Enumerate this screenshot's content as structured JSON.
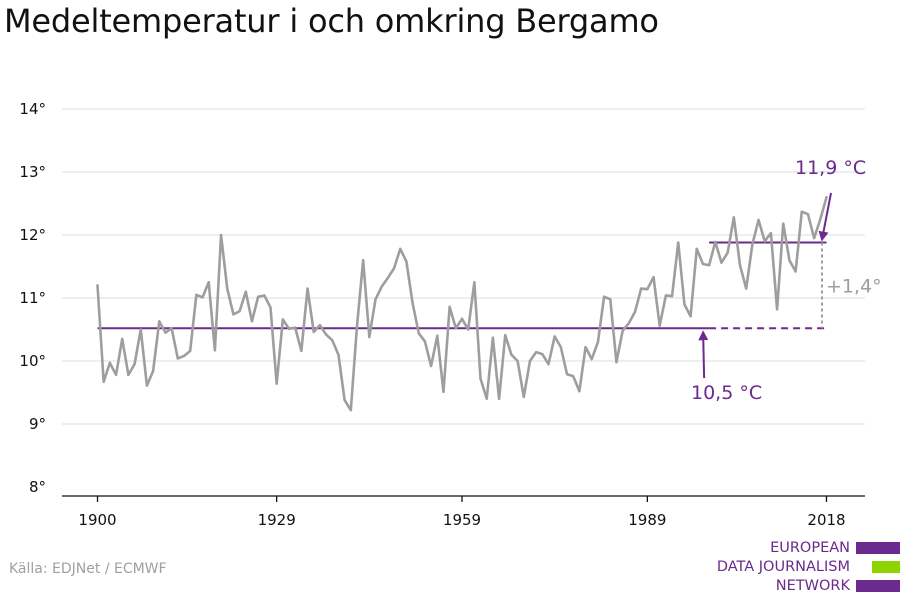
{
  "title": "Medeltemperatur i och omkring Bergamo",
  "source": "Källa: EDJNet / ECMWF",
  "logo": {
    "lines": [
      "EUROPEAN",
      "DATA JOURNALISM",
      "NETWORK"
    ],
    "bar_colors": [
      "#6b2a8e",
      "#8fd400",
      "#6b2a8e"
    ]
  },
  "colors": {
    "series": "#9e9e9e",
    "accent": "#6b2a8e",
    "difference": "#9e9e9e",
    "grid": "#dcdcdc",
    "axis": "#111111"
  },
  "chart_data": {
    "type": "line",
    "xlim": [
      1900,
      2018
    ],
    "ylim": [
      8,
      14
    ],
    "x_ticks": [
      1900,
      1929,
      1959,
      1989,
      2018
    ],
    "y_ticks": [
      8,
      9,
      10,
      11,
      12,
      13,
      14
    ],
    "y_tick_suffix": "°",
    "grid": true,
    "series": [
      {
        "x_start": 1900,
        "values": [
          11.2,
          9.67,
          9.97,
          9.78,
          10.35,
          9.78,
          9.95,
          10.5,
          9.61,
          9.84,
          10.63,
          10.45,
          10.52,
          10.04,
          10.08,
          10.16,
          11.05,
          11.01,
          11.25,
          10.17,
          12.0,
          11.15,
          10.74,
          10.79,
          11.1,
          10.63,
          11.02,
          11.04,
          10.85,
          9.64,
          10.66,
          10.51,
          10.53,
          10.16,
          11.15,
          10.46,
          10.57,
          10.42,
          10.33,
          10.1,
          9.38,
          9.22,
          10.55,
          11.6,
          10.38,
          10.98,
          11.18,
          11.32,
          11.47,
          11.78,
          11.58,
          10.92,
          10.44,
          10.31,
          9.92,
          10.4,
          9.51,
          10.86,
          10.52,
          10.67,
          10.5,
          11.25,
          9.72,
          9.4,
          10.37,
          9.4,
          10.41,
          10.1,
          10.0,
          9.43,
          10.0,
          10.14,
          10.11,
          9.95,
          10.39,
          10.22,
          9.79,
          9.76,
          9.52,
          10.22,
          10.03,
          10.3,
          11.02,
          10.98,
          9.98,
          10.48,
          10.6,
          10.78,
          11.15,
          11.14,
          11.33,
          10.56,
          11.04,
          11.03,
          11.88,
          10.9,
          10.71,
          11.78,
          11.54,
          11.52,
          11.89,
          11.56,
          11.72,
          12.28,
          11.52,
          11.15,
          11.85,
          12.24,
          11.9,
          12.03,
          10.82,
          12.18,
          11.6,
          11.42,
          12.37,
          12.33,
          11.95,
          12.25,
          12.6
        ]
      }
    ],
    "reference_lines": [
      {
        "label": "10,5 °C",
        "value": 10.52,
        "x_range": [
          1900,
          1999
        ],
        "x_extends_dashed_to": 2018
      },
      {
        "label": "11,9 °C",
        "value": 11.88,
        "x_range": [
          1999,
          2018
        ]
      }
    ],
    "difference_label": "+1,4°"
  }
}
